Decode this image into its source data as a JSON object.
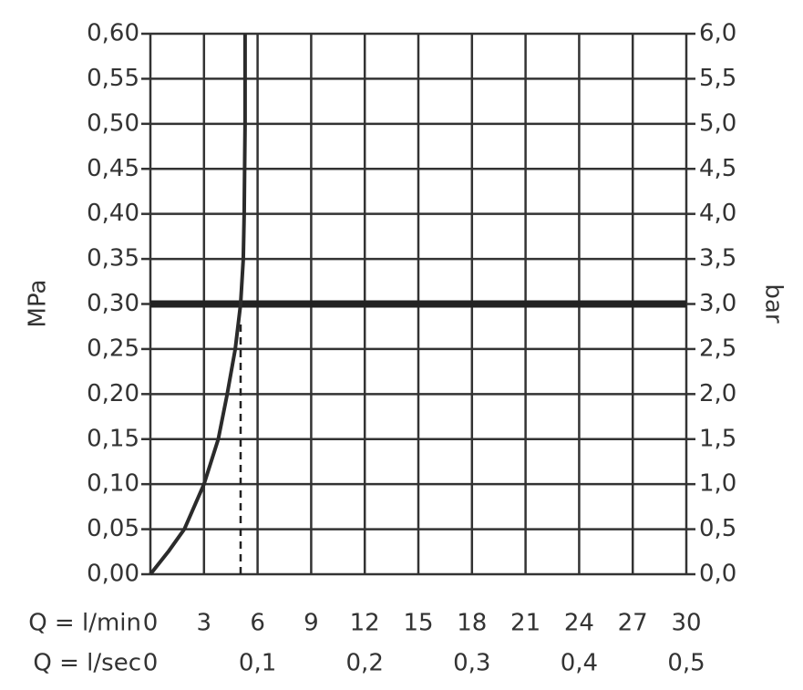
{
  "chart_data": {
    "type": "line",
    "ylabel": "MPa",
    "y2label": "bar",
    "xlabel": "Q = l/min",
    "x2label": "Q = l/sec",
    "xlim": [
      0,
      30
    ],
    "xticks": [
      0,
      3,
      6,
      9,
      12,
      15,
      18,
      21,
      24,
      27,
      30
    ],
    "x2lim": [
      0,
      0.5
    ],
    "x2ticks": [
      0,
      {
        "value": 0.1,
        "label": "0,1"
      },
      {
        "value": 0.2,
        "label": "0,2"
      },
      {
        "value": 0.3,
        "label": "0,3"
      },
      {
        "value": 0.4,
        "label": "0,4"
      },
      {
        "value": 0.5,
        "label": "0,5"
      }
    ],
    "ylim": [
      0,
      0.6
    ],
    "yticks": [
      {
        "value": 0,
        "label": "0,00"
      },
      {
        "value": 0.05,
        "label": "0,05"
      },
      {
        "value": 0.1,
        "label": "0,10"
      },
      {
        "value": 0.15,
        "label": "0,15"
      },
      {
        "value": 0.2,
        "label": "0,20"
      },
      {
        "value": 0.25,
        "label": "0,25"
      },
      {
        "value": 0.3,
        "label": "0,30"
      },
      {
        "value": 0.35,
        "label": "0,35"
      },
      {
        "value": 0.4,
        "label": "0,40"
      },
      {
        "value": 0.45,
        "label": "0,45"
      },
      {
        "value": 0.5,
        "label": "0,50"
      },
      {
        "value": 0.55,
        "label": "0,55"
      },
      {
        "value": 0.6,
        "label": "0,60"
      }
    ],
    "y2lim": [
      0,
      6
    ],
    "y2ticks": [
      {
        "value": 0,
        "label": "0,0"
      },
      {
        "value": 0.5,
        "label": "0,5"
      },
      {
        "value": 1,
        "label": "1,0"
      },
      {
        "value": 1.5,
        "label": "1,5"
      },
      {
        "value": 2,
        "label": "2,0"
      },
      {
        "value": 2.5,
        "label": "2,5"
      },
      {
        "value": 3,
        "label": "3,0"
      },
      {
        "value": 3.5,
        "label": "3,5"
      },
      {
        "value": 4,
        "label": "4,0"
      },
      {
        "value": 4.5,
        "label": "4,5"
      },
      {
        "value": 5,
        "label": "5,0"
      },
      {
        "value": 5.5,
        "label": "5,5"
      },
      {
        "value": 6,
        "label": "6,0"
      }
    ],
    "grid": true,
    "x": [
      0,
      1,
      1.9,
      3,
      3.8,
      4.3,
      4.75,
      5.05,
      5.2,
      5.25,
      5.3,
      5.3
    ],
    "series": [
      {
        "color": "#2b2b2b",
        "values": [
          0,
          0.025,
          0.05,
          0.1,
          0.15,
          0.2,
          0.25,
          0.3,
          0.35,
          0.4,
          0.5,
          0.6
        ]
      }
    ],
    "reference_y": 0.3,
    "marker_x": 5.05,
    "marker_top": 0.28
  }
}
